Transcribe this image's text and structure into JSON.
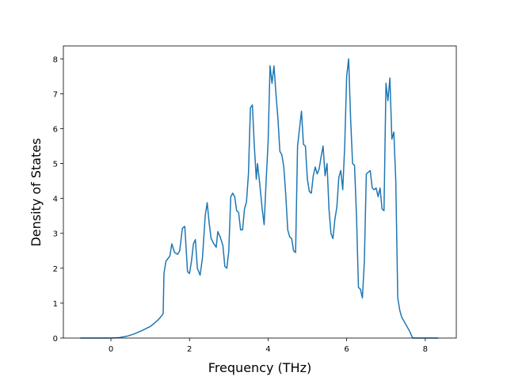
{
  "chart_data": {
    "type": "line",
    "x_label": "Frequency (THz)",
    "y_label": "Density of States",
    "x": [
      -0.78,
      0,
      0.2,
      0.4,
      0.6,
      0.8,
      1.0,
      1.1,
      1.2,
      1.3,
      1.33,
      1.35,
      1.4,
      1.5,
      1.55,
      1.62,
      1.7,
      1.75,
      1.82,
      1.88,
      1.95,
      2.0,
      2.05,
      2.1,
      2.15,
      2.2,
      2.27,
      2.33,
      2.4,
      2.45,
      2.5,
      2.55,
      2.62,
      2.68,
      2.72,
      2.78,
      2.85,
      2.9,
      2.95,
      3.0,
      3.05,
      3.1,
      3.15,
      3.2,
      3.25,
      3.3,
      3.35,
      3.4,
      3.45,
      3.5,
      3.55,
      3.6,
      3.65,
      3.7,
      3.73,
      3.78,
      3.85,
      3.9,
      3.95,
      4.0,
      4.05,
      4.1,
      4.15,
      4.2,
      4.25,
      4.3,
      4.35,
      4.4,
      4.45,
      4.5,
      4.55,
      4.6,
      4.65,
      4.7,
      4.75,
      4.8,
      4.85,
      4.9,
      4.95,
      5.0,
      5.05,
      5.1,
      5.15,
      5.2,
      5.25,
      5.3,
      5.35,
      5.4,
      5.45,
      5.5,
      5.55,
      5.6,
      5.65,
      5.7,
      5.75,
      5.8,
      5.85,
      5.9,
      5.95,
      6.0,
      6.05,
      6.1,
      6.15,
      6.2,
      6.25,
      6.3,
      6.35,
      6.4,
      6.45,
      6.5,
      6.55,
      6.6,
      6.65,
      6.7,
      6.75,
      6.8,
      6.85,
      6.9,
      6.95,
      7.0,
      7.05,
      7.1,
      7.15,
      7.2,
      7.25,
      7.3,
      7.35,
      7.4,
      7.5,
      7.6,
      7.68,
      8.33
    ],
    "series": [
      {
        "color": "#1f77b4",
        "values": [
          0,
          0,
          0.01,
          0.05,
          0.12,
          0.22,
          0.33,
          0.42,
          0.52,
          0.65,
          0.7,
          1.85,
          2.2,
          2.35,
          2.7,
          2.45,
          2.4,
          2.5,
          3.15,
          3.2,
          1.9,
          1.85,
          2.2,
          2.7,
          2.82,
          2.0,
          1.8,
          2.3,
          3.5,
          3.88,
          3.3,
          2.85,
          2.7,
          2.6,
          3.05,
          2.9,
          2.65,
          2.05,
          2.0,
          2.5,
          4.05,
          4.15,
          4.05,
          3.65,
          3.6,
          3.1,
          3.1,
          3.7,
          3.9,
          4.7,
          6.6,
          6.68,
          5.5,
          4.55,
          5.0,
          4.5,
          3.7,
          3.25,
          4.5,
          5.6,
          7.8,
          7.3,
          7.8,
          7.0,
          6.3,
          5.35,
          5.25,
          4.9,
          4.1,
          3.1,
          2.9,
          2.85,
          2.5,
          2.45,
          5.5,
          6.0,
          6.5,
          5.55,
          5.5,
          4.55,
          4.2,
          4.15,
          4.65,
          4.9,
          4.7,
          4.85,
          5.2,
          5.5,
          4.65,
          5.0,
          3.7,
          3.0,
          2.85,
          3.4,
          3.75,
          4.6,
          4.8,
          4.25,
          5.5,
          7.5,
          8.0,
          6.3,
          5.0,
          4.95,
          3.5,
          1.45,
          1.4,
          1.15,
          2.2,
          4.7,
          4.75,
          4.8,
          4.3,
          4.25,
          4.3,
          4.05,
          4.3,
          3.7,
          3.65,
          7.3,
          6.8,
          7.45,
          5.7,
          5.9,
          4.5,
          1.15,
          0.8,
          0.6,
          0.4,
          0.2,
          0,
          0
        ]
      }
    ],
    "xlim": [
      -1.21,
      8.79
    ],
    "ylim": [
      0,
      8.37
    ],
    "xticks": [
      0,
      2,
      4,
      6,
      8
    ],
    "yticks": [
      0,
      1,
      2,
      3,
      4,
      5,
      6,
      7,
      8
    ]
  }
}
